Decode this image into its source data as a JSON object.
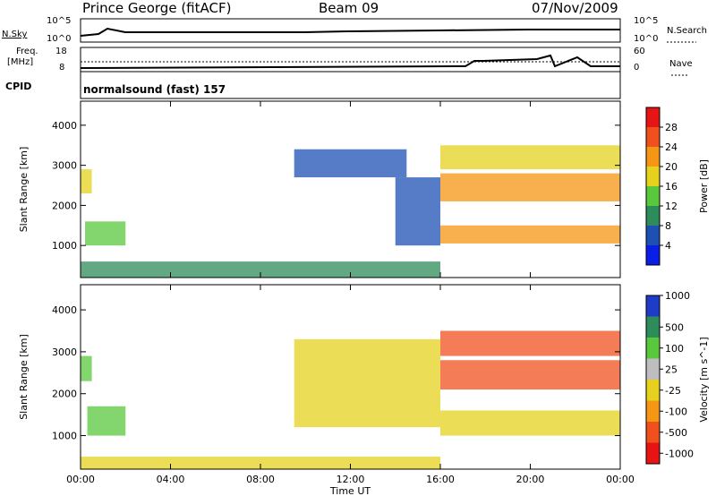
{
  "header": {
    "station": "Prince George (fitACF)",
    "beam": "Beam 09",
    "date": "07/Nov/2009"
  },
  "noise_panel": {
    "left_label": "N.Sky",
    "right_label": "N.Search",
    "left_ticks": [
      "10^5",
      "10^0"
    ],
    "right_ticks": [
      "10^5",
      "10^0"
    ]
  },
  "freq_panel": {
    "left_label_line1": "Freq.",
    "left_label_line2": "[MHz]",
    "left_ticks": [
      "18",
      "8"
    ],
    "right_label": "Nave",
    "right_ticks": [
      "60",
      "0"
    ]
  },
  "cpid": {
    "label": "CPID",
    "value": "normalsound (fast) 157"
  },
  "chart_data": [
    {
      "type": "heatmap",
      "title": "Power",
      "ylabel": "Slant Range [km]",
      "ylim": [
        200,
        4600
      ],
      "yticks": [
        "1000",
        "2000",
        "3000",
        "4000"
      ],
      "colorbar_label": "Power [dB]",
      "colorbar_ticks": [
        "4",
        "8",
        "12",
        "16",
        "20",
        "24",
        "28"
      ],
      "colors": [
        "#0a1ee6",
        "#1e50b4",
        "#2d8c5a",
        "#5ac83c",
        "#e6d21e",
        "#f59614",
        "#f0501e",
        "#e61414"
      ],
      "regions": [
        {
          "t0": 0.0,
          "t1": 0.5,
          "r0": 2300,
          "r1": 2900,
          "level": 16
        },
        {
          "t0": 0.2,
          "t1": 2.0,
          "r0": 1000,
          "r1": 1600,
          "level": 12
        },
        {
          "t0": 9.5,
          "t1": 14.5,
          "r0": 2700,
          "r1": 3400,
          "level": 6
        },
        {
          "t0": 14.0,
          "t1": 16.0,
          "r0": 1000,
          "r1": 2700,
          "level": 6
        },
        {
          "t0": 16.0,
          "t1": 24.0,
          "r0": 1050,
          "r1": 1500,
          "level": 20
        },
        {
          "t0": 16.0,
          "t1": 24.0,
          "r0": 2100,
          "r1": 2800,
          "level": 22
        },
        {
          "t0": 16.0,
          "t1": 24.0,
          "r0": 2900,
          "r1": 3500,
          "level": 16
        },
        {
          "t0": 0.0,
          "t1": 16.0,
          "r0": 200,
          "r1": 600,
          "level": 8
        }
      ]
    },
    {
      "type": "heatmap",
      "title": "Velocity",
      "ylabel": "Slant Range [km]",
      "xlabel": "Time UT",
      "ylim": [
        200,
        4600
      ],
      "yticks": [
        "1000",
        "2000",
        "3000",
        "4000"
      ],
      "xticks": [
        "00:00",
        "04:00",
        "08:00",
        "12:00",
        "16:00",
        "20:00",
        "00:00"
      ],
      "colorbar_label": "Velocity [m s^-1]",
      "colorbar_ticks": [
        "1000",
        "500",
        "100",
        "25",
        "-25",
        "-100",
        "-500",
        "-1000"
      ],
      "colors": [
        "#1e3cc8",
        "#2d8c5a",
        "#5ac83c",
        "#bebebe",
        "#e6d21e",
        "#f59614",
        "#f0501e",
        "#e61414"
      ],
      "regions": [
        {
          "t0": 0.0,
          "t1": 0.5,
          "r0": 2300,
          "r1": 2900,
          "level": 100
        },
        {
          "t0": 0.3,
          "t1": 2.0,
          "r0": 1000,
          "r1": 1700,
          "level": 200
        },
        {
          "t0": 9.5,
          "t1": 16.0,
          "r0": 1200,
          "r1": 3300,
          "level": 0
        },
        {
          "t0": 16.0,
          "t1": 24.0,
          "r0": 1000,
          "r1": 1600,
          "level": 0
        },
        {
          "t0": 16.0,
          "t1": 24.0,
          "r0": 2100,
          "r1": 2800,
          "level": -150
        },
        {
          "t0": 16.0,
          "t1": 24.0,
          "r0": 2900,
          "r1": 3500,
          "level": -300
        },
        {
          "t0": 0.0,
          "t1": 16.0,
          "r0": 200,
          "r1": 500,
          "level": 0
        }
      ]
    }
  ]
}
